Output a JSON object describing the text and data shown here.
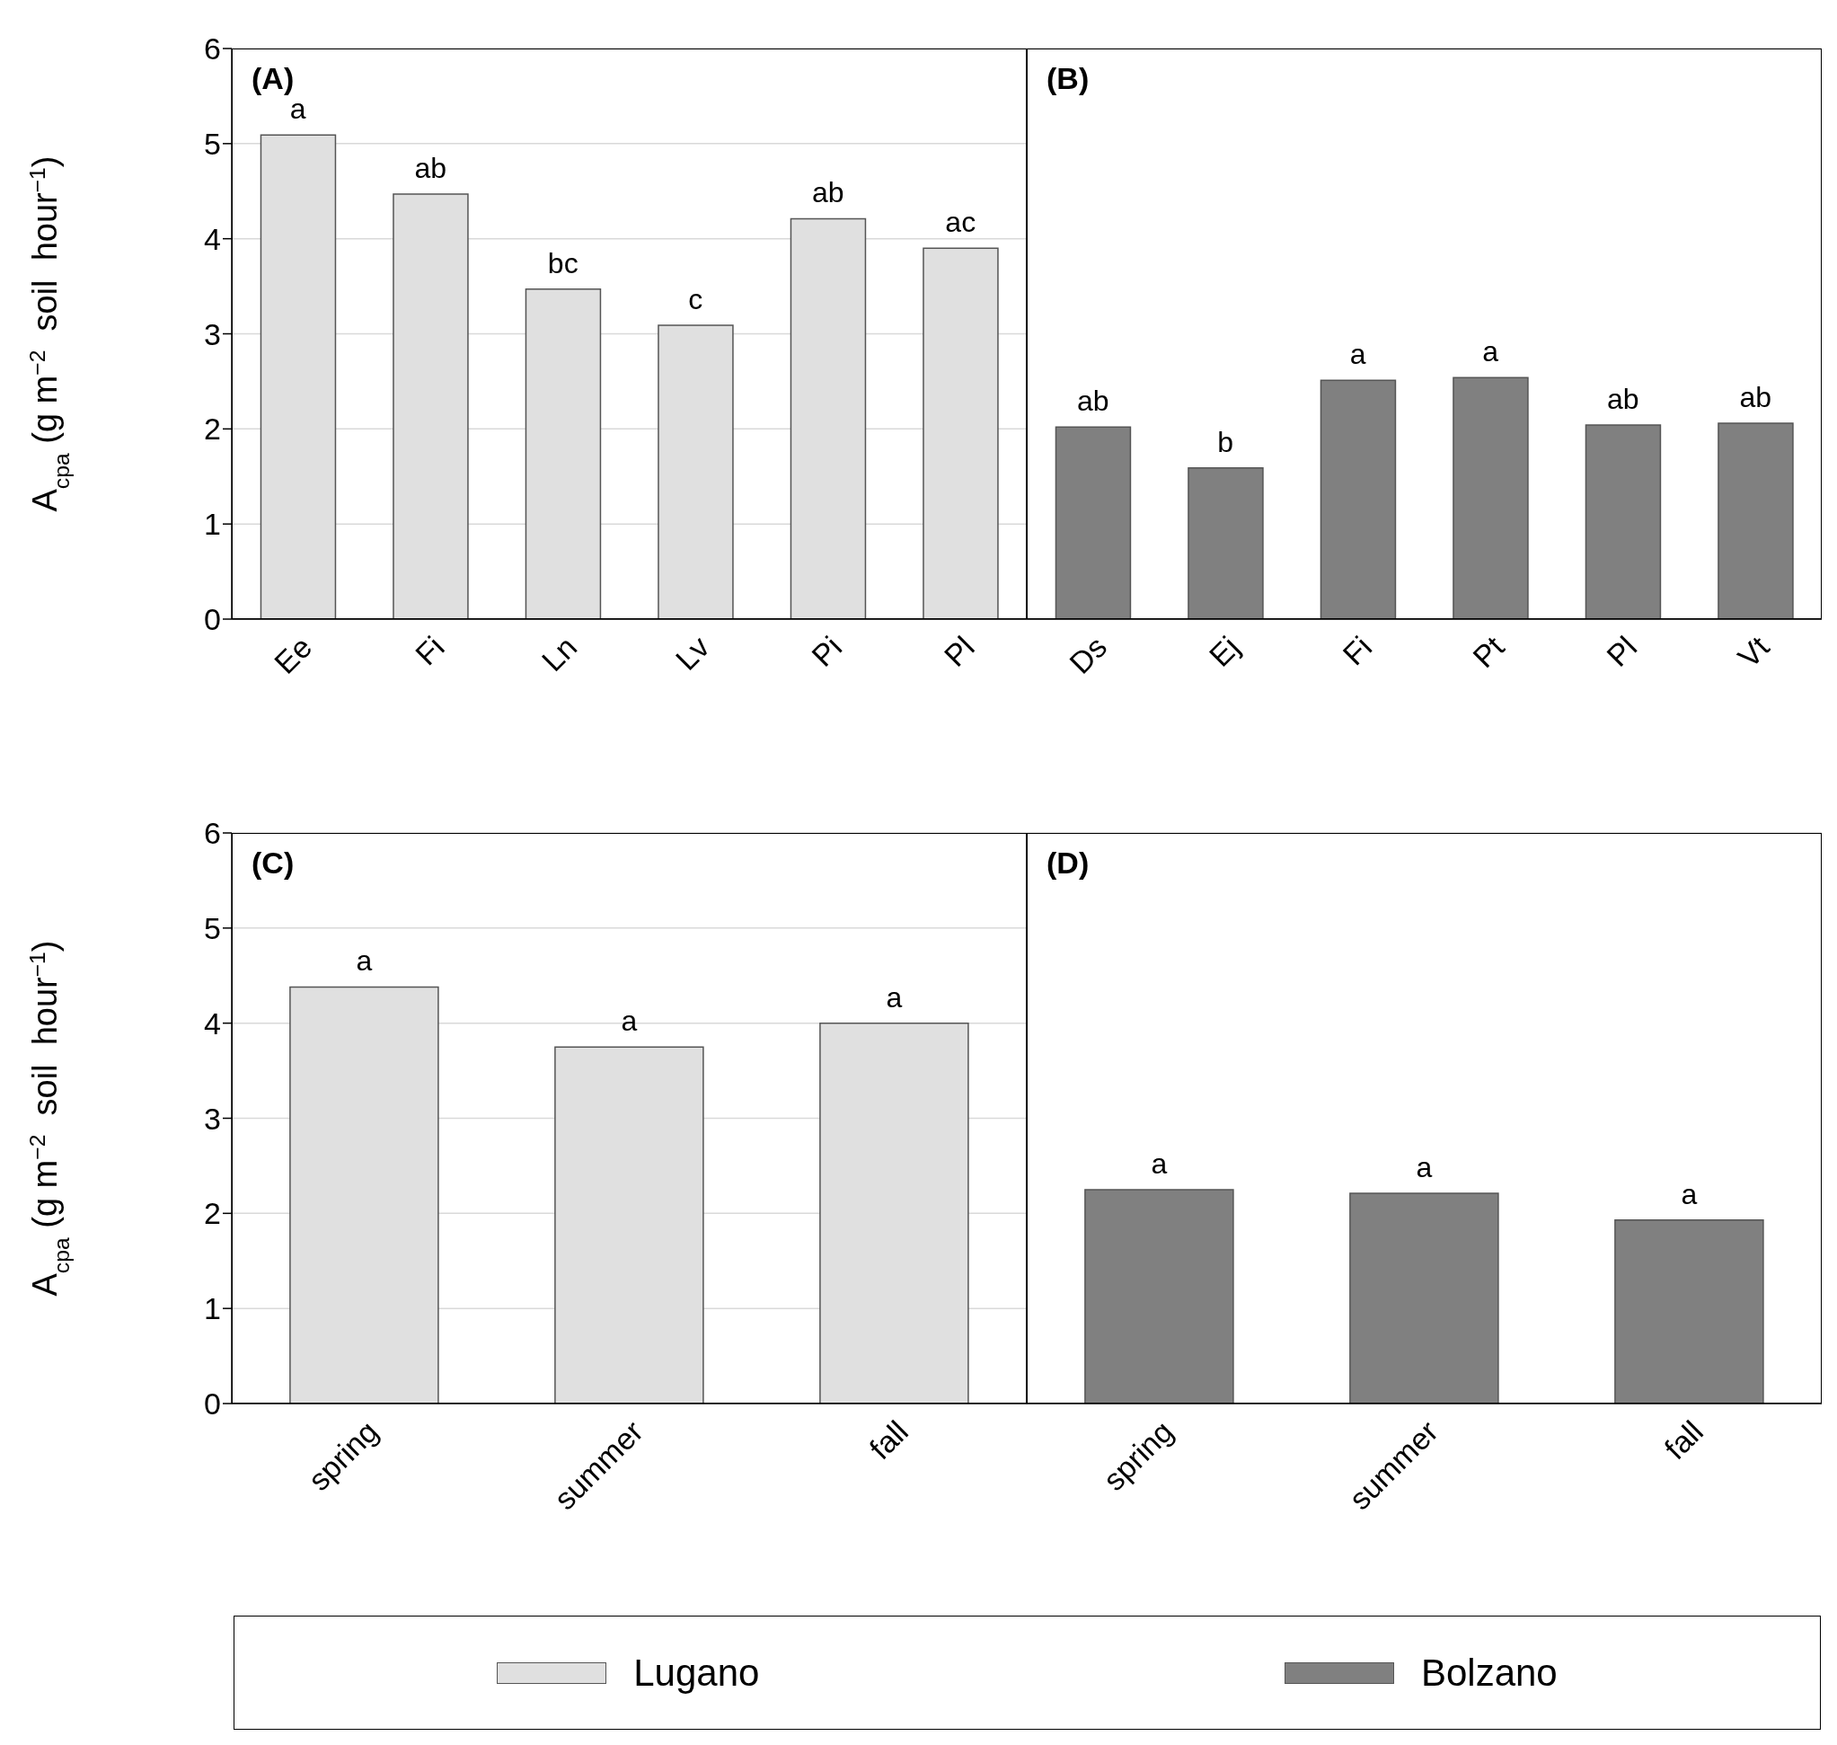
{
  "chart_data": [
    {
      "type": "bar",
      "title": "(A)",
      "ylabel": "A$_{cpa}$ (g m$^{−2}$  soil  hour$^{−1}$)",
      "categories": [
        "Ee",
        "Fi",
        "Ln",
        "Lv",
        "Pi",
        "Pl"
      ],
      "series": [
        {
          "color": "#e0e0e0",
          "values": [
            5.09,
            4.47,
            3.47,
            3.09,
            4.21,
            3.9
          ]
        }
      ],
      "ylim": [
        0,
        6
      ],
      "yticks": [
        0,
        1,
        2,
        3,
        4,
        5,
        6
      ],
      "grid": "y",
      "annotations": [
        {
          "text": "a",
          "x": "Ee",
          "y": 5.09
        },
        {
          "text": "ab",
          "x": "Fi",
          "y": 4.47
        },
        {
          "text": "bc",
          "x": "Ln",
          "y": 3.47
        },
        {
          "text": "c",
          "x": "Lv",
          "y": 3.09
        },
        {
          "text": "ab",
          "x": "Pi",
          "y": 4.21
        },
        {
          "text": "ac",
          "x": "Pl",
          "y": 3.9
        }
      ]
    },
    {
      "type": "bar",
      "title": "(B)",
      "categories": [
        "Ds",
        "Ej",
        "Fi",
        "Pt",
        "Pl",
        "Vt"
      ],
      "series": [
        {
          "color": "#808080",
          "values": [
            2.02,
            1.59,
            2.51,
            2.54,
            2.04,
            2.06
          ]
        }
      ],
      "ylim": [
        0,
        6
      ],
      "yticks": [
        0,
        1,
        2,
        3,
        4,
        5,
        6
      ],
      "grid": "y",
      "tick_labels": "x",
      "annotations": [
        {
          "text": "ab",
          "x": "Ds",
          "y": 2.02
        },
        {
          "text": "b",
          "x": "Ej",
          "y": 1.59
        },
        {
          "text": "a",
          "x": "Fi",
          "y": 2.51
        },
        {
          "text": "a",
          "x": "Pt",
          "y": 2.54
        },
        {
          "text": "ab",
          "x": "Pl",
          "y": 2.04
        },
        {
          "text": "ab",
          "x": "Vt",
          "y": 2.06
        }
      ]
    },
    {
      "type": "bar",
      "title": "(C)",
      "ylabel": "A$_{cpa}$ (g m$^{−2}$  soil  hour$^{−1}$)",
      "categories": [
        "spring",
        "summer",
        "fall"
      ],
      "series": [
        {
          "name": "Lugano",
          "color": "#e0e0e0",
          "values": [
            4.38,
            3.75,
            4.0
          ]
        }
      ],
      "ylim": [
        0,
        6
      ],
      "yticks": [
        0,
        1,
        2,
        3,
        4,
        5,
        6
      ],
      "grid": "y",
      "legend": "bottom",
      "annotations": [
        {
          "text": "a",
          "x": "spring",
          "y": 4.38
        },
        {
          "text": "a",
          "x": "summer",
          "y": 3.75
        },
        {
          "text": "a",
          "x": "fall",
          "y": 4.0
        }
      ]
    },
    {
      "type": "bar",
      "title": "(D)",
      "categories": [
        "spring",
        "summer",
        "fall"
      ],
      "series": [
        {
          "name": "Bolzano",
          "color": "#808080",
          "values": [
            2.25,
            2.21,
            1.93
          ]
        }
      ],
      "ylim": [
        0,
        6
      ],
      "yticks": [
        0,
        1,
        2,
        3,
        4,
        5,
        6
      ],
      "grid": "y",
      "tick_labels": "x",
      "legend": "bottom",
      "annotations": [
        {
          "text": "a",
          "x": "spring",
          "y": 2.25
        },
        {
          "text": "a",
          "x": "summer",
          "y": 2.21
        },
        {
          "text": "a",
          "x": "fall",
          "y": 1.93
        }
      ]
    }
  ]
}
